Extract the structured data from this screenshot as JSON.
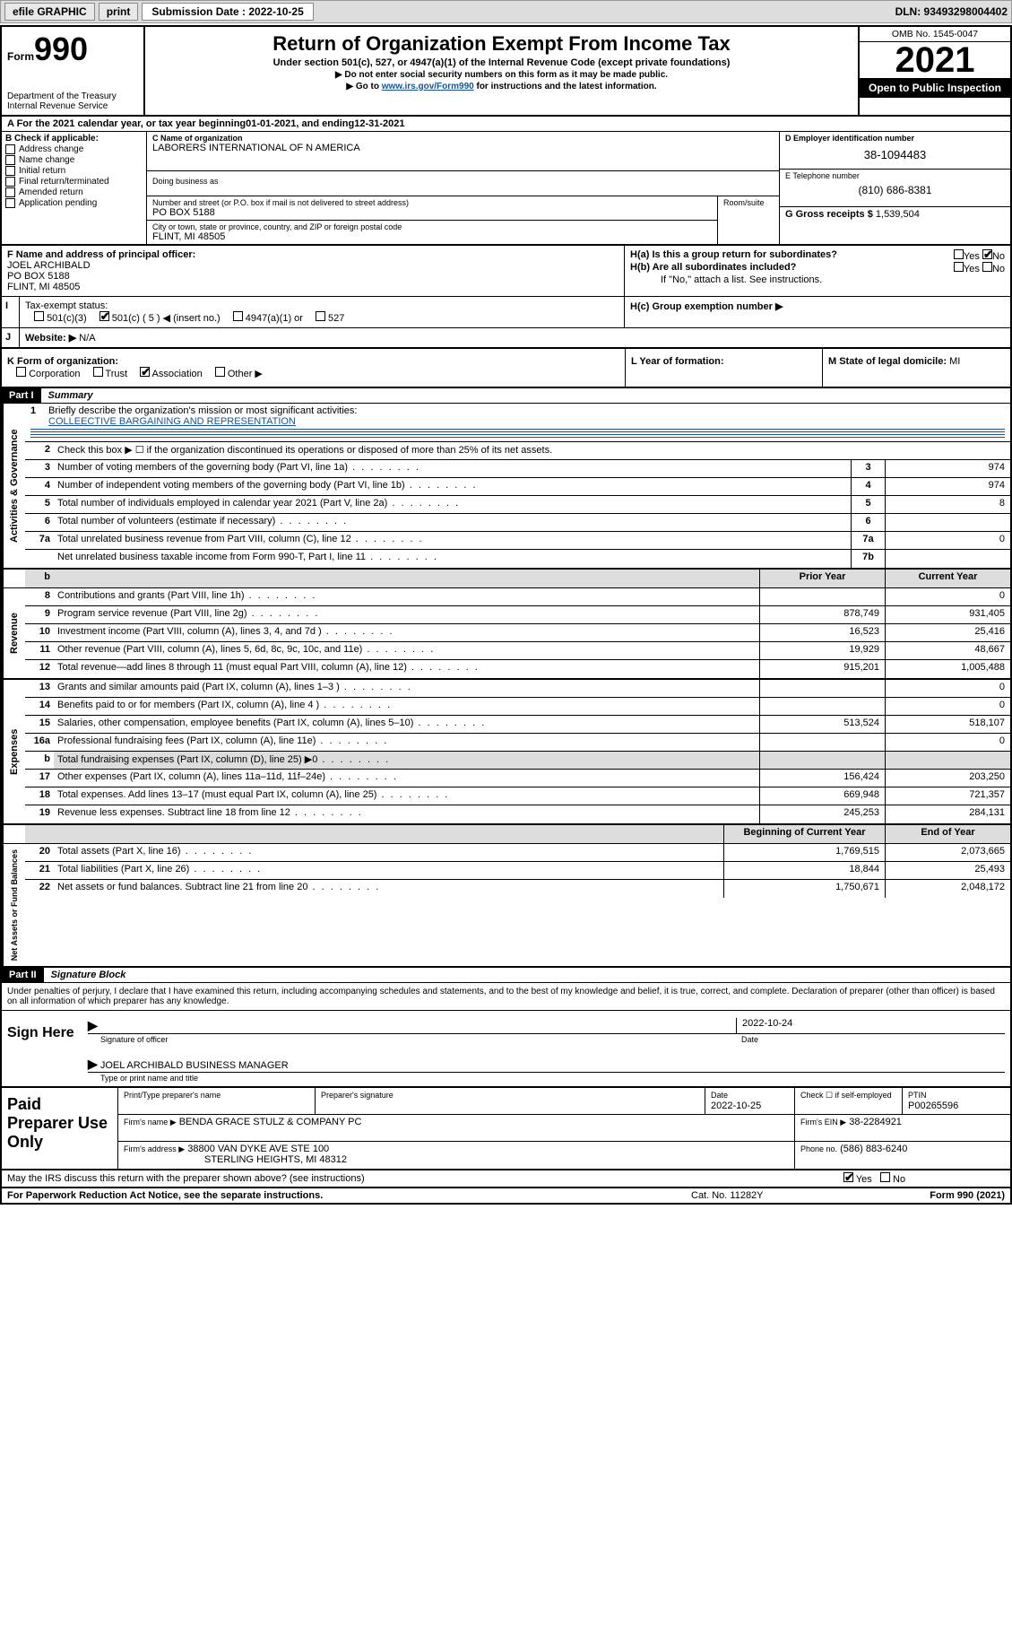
{
  "toolbar": {
    "efile_label": "efile GRAPHIC",
    "print_label": "print",
    "sub_label": "Submission Date : 2022-10-25",
    "dln_label": "DLN: 93493298004402"
  },
  "header": {
    "form_word": "Form",
    "form_number": "990",
    "dept": "Department of the Treasury",
    "irs": "Internal Revenue Service",
    "title": "Return of Organization Exempt From Income Tax",
    "subtitle": "Under section 501(c), 527, or 4947(a)(1) of the Internal Revenue Code (except private foundations)",
    "instr1": "▶ Do not enter social security numbers on this form as it may be made public.",
    "instr2_pre": "▶ Go to ",
    "instr2_link": "www.irs.gov/Form990",
    "instr2_post": " for instructions and the latest information.",
    "omb": "OMB No. 1545-0047",
    "year": "2021",
    "open_public": "Open to Public Inspection"
  },
  "period": {
    "label_a": "A For the 2021 calendar year, or tax year beginning ",
    "begin": "01-01-2021",
    "label_b": " , and ending ",
    "end": "12-31-2021"
  },
  "box_b": {
    "lead": "B Check if applicable:",
    "opts": [
      "Address change",
      "Name change",
      "Initial return",
      "Final return/terminated",
      "Amended return",
      "Application pending"
    ]
  },
  "box_c": {
    "name_label": "C Name of organization",
    "name": "LABORERS INTERNATIONAL OF N AMERICA",
    "dba_label": "Doing business as",
    "dba": "",
    "street_label": "Number and street (or P.O. box if mail is not delivered to street address)",
    "street": "PO BOX 5188",
    "room_label": "Room/suite",
    "room": "",
    "city_label": "City or town, state or province, country, and ZIP or foreign postal code",
    "city": "FLINT, MI  48505"
  },
  "box_d": {
    "label": "D Employer identification number",
    "value": "38-1094483"
  },
  "box_e": {
    "label": "E Telephone number",
    "value": "(810) 686-8381"
  },
  "box_g": {
    "label": "G Gross receipts $ ",
    "value": "1,539,504"
  },
  "box_f": {
    "label": "F Name and address of principal officer:",
    "name": "JOEL ARCHIBALD",
    "street": "PO BOX 5188",
    "city": "FLINT, MI  48505"
  },
  "box_h": {
    "ha": "H(a)  Is this a group return for subordinates?",
    "hb": "H(b)  Are all subordinates included?",
    "hb_note": "If \"No,\" attach a list. See instructions.",
    "hc": "H(c)  Group exemption number ▶",
    "yes": "Yes",
    "no": "No"
  },
  "row_i": {
    "label": "Tax-exempt status:",
    "o1": "501(c)(3)",
    "o2": "501(c) ( 5 ) ◀ (insert no.)",
    "o3": "4947(a)(1) or",
    "o4": "527"
  },
  "row_j": {
    "label": "Website: ▶",
    "value": "N/A"
  },
  "row_k": {
    "label": "K Form of organization:",
    "o1": "Corporation",
    "o2": "Trust",
    "o3": "Association",
    "o4": "Other ▶",
    "l_label": "L Year of formation:",
    "l_val": "",
    "m_label": "M State of legal domicile: ",
    "m_val": "MI"
  },
  "part1": {
    "label": "Part I",
    "title": "Summary"
  },
  "governance": {
    "q1_label": "Briefly describe the organization's mission or most significant activities:",
    "q1_text": "COLLEECTIVE BARGAINING AND REPRESENTATION",
    "q2": "Check this box ▶ ☐  if the organization discontinued its operations or disposed of more than 25% of its net assets.",
    "rows": [
      {
        "n": "3",
        "d": "Number of voting members of the governing body (Part VI, line 1a)",
        "box": "3",
        "v": "974"
      },
      {
        "n": "4",
        "d": "Number of independent voting members of the governing body (Part VI, line 1b)",
        "box": "4",
        "v": "974"
      },
      {
        "n": "5",
        "d": "Total number of individuals employed in calendar year 2021 (Part V, line 2a)",
        "box": "5",
        "v": "8"
      },
      {
        "n": "6",
        "d": "Total number of volunteers (estimate if necessary)",
        "box": "6",
        "v": ""
      },
      {
        "n": "7a",
        "d": "Total unrelated business revenue from Part VIII, column (C), line 12",
        "box": "7a",
        "v": "0"
      },
      {
        "n": "",
        "d": "Net unrelated business taxable income from Form 990-T, Part I, line 11",
        "box": "7b",
        "v": ""
      }
    ]
  },
  "two_col_hdr": {
    "num": "b",
    "prior": "Prior Year",
    "current": "Current Year"
  },
  "revenue": [
    {
      "n": "8",
      "d": "Contributions and grants (Part VIII, line 1h)",
      "p": "",
      "c": "0"
    },
    {
      "n": "9",
      "d": "Program service revenue (Part VIII, line 2g)",
      "p": "878,749",
      "c": "931,405"
    },
    {
      "n": "10",
      "d": "Investment income (Part VIII, column (A), lines 3, 4, and 7d )",
      "p": "16,523",
      "c": "25,416"
    },
    {
      "n": "11",
      "d": "Other revenue (Part VIII, column (A), lines 5, 6d, 8c, 9c, 10c, and 11e)",
      "p": "19,929",
      "c": "48,667"
    },
    {
      "n": "12",
      "d": "Total revenue—add lines 8 through 11 (must equal Part VIII, column (A), line 12)",
      "p": "915,201",
      "c": "1,005,488"
    }
  ],
  "expenses": [
    {
      "n": "13",
      "d": "Grants and similar amounts paid (Part IX, column (A), lines 1–3 )",
      "p": "",
      "c": "0"
    },
    {
      "n": "14",
      "d": "Benefits paid to or for members (Part IX, column (A), line 4 )",
      "p": "",
      "c": "0"
    },
    {
      "n": "15",
      "d": "Salaries, other compensation, employee benefits (Part IX, column (A), lines 5–10)",
      "p": "513,524",
      "c": "518,107"
    },
    {
      "n": "16a",
      "d": "Professional fundraising fees (Part IX, column (A), line 11e)",
      "p": "",
      "c": "0"
    },
    {
      "n": "b",
      "d": "Total fundraising expenses (Part IX, column (D), line 25) ▶0",
      "p": "",
      "c": "",
      "shade": true
    },
    {
      "n": "17",
      "d": "Other expenses (Part IX, column (A), lines 11a–11d, 11f–24e)",
      "p": "156,424",
      "c": "203,250"
    },
    {
      "n": "18",
      "d": "Total expenses. Add lines 13–17 (must equal Part IX, column (A), line 25)",
      "p": "669,948",
      "c": "721,357"
    },
    {
      "n": "19",
      "d": "Revenue less expenses. Subtract line 18 from line 12",
      "p": "245,253",
      "c": "284,131"
    }
  ],
  "net_hdr": {
    "prior": "Beginning of Current Year",
    "current": "End of Year"
  },
  "netassets": [
    {
      "n": "20",
      "d": "Total assets (Part X, line 16)",
      "p": "1,769,515",
      "c": "2,073,665"
    },
    {
      "n": "21",
      "d": "Total liabilities (Part X, line 26)",
      "p": "18,844",
      "c": "25,493"
    },
    {
      "n": "22",
      "d": "Net assets or fund balances. Subtract line 21 from line 20",
      "p": "1,750,671",
      "c": "2,048,172"
    }
  ],
  "part2": {
    "label": "Part II",
    "title": "Signature Block"
  },
  "sig": {
    "declaration": "Under penalties of perjury, I declare that I have examined this return, including accompanying schedules and statements, and to the best of my knowledge and belief, it is true, correct, and complete. Declaration of preparer (other than officer) is based on all information of which preparer has any knowledge.",
    "sign_here": "Sign Here",
    "sig_of_officer": "Signature of officer",
    "date_label": "Date",
    "date": "2022-10-24",
    "name_title": "JOEL ARCHIBALD  BUSINESS MANAGER",
    "type_label": "Type or print name and title"
  },
  "paid": {
    "label": "Paid Preparer Use Only",
    "h_name": "Print/Type preparer's name",
    "h_sig": "Preparer's signature",
    "h_date": "Date",
    "date": "2022-10-25",
    "h_check": "Check ☐ if self-employed",
    "h_ptin": "PTIN",
    "ptin": "P00265596",
    "firm_name_l": "Firm's name    ▶",
    "firm_name": "BENDA GRACE STULZ & COMPANY PC",
    "firm_ein_l": "Firm's EIN ▶",
    "firm_ein": "38-2284921",
    "firm_addr_l": "Firm's address ▶",
    "firm_addr1": "38800 VAN DYKE AVE STE 100",
    "firm_addr2": "STERLING HEIGHTS, MI  48312",
    "phone_l": "Phone no.",
    "phone": "(586) 883-6240"
  },
  "footer": {
    "discuss": "May the IRS discuss this return with the preparer shown above? (see instructions)",
    "yes": "Yes",
    "no": "No",
    "paperwork": "For Paperwork Reduction Act Notice, see the separate instructions.",
    "cat": "Cat. No. 11282Y",
    "form": "Form 990 (2021)"
  },
  "labels": {
    "v_gov": "Activities & Governance",
    "v_rev": "Revenue",
    "v_exp": "Expenses",
    "v_net": "Net Assets or Fund Balances"
  }
}
